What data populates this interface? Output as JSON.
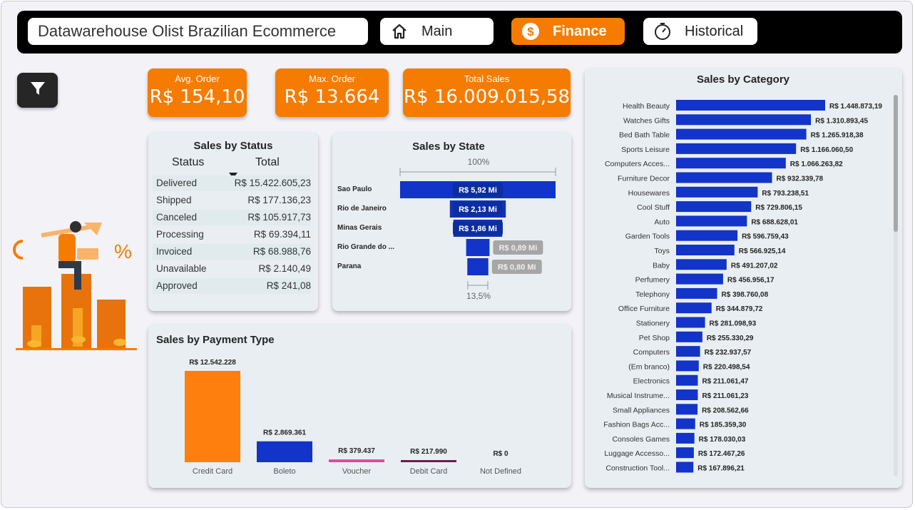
{
  "header": {
    "title": "Datawarehouse Olist Brazilian Ecommerce",
    "nav": [
      {
        "label": "Main",
        "icon": "home-icon",
        "active": false
      },
      {
        "label": "Finance",
        "icon": "dollar-icon",
        "active": true
      },
      {
        "label": "Historical",
        "icon": "stopwatch-icon",
        "active": false
      }
    ]
  },
  "filter_button": {
    "icon": "filter-icon"
  },
  "kpis": [
    {
      "label": "Avg. Order",
      "value": "R$ 154,10"
    },
    {
      "label": "Max. Order",
      "value": "R$ 13.664"
    },
    {
      "label": "Total Sales",
      "value": "R$ 16.009.015,58"
    }
  ],
  "colors": {
    "accent": "#f57c00",
    "topbar": "#000000",
    "bar_blue": "#1234c8",
    "bar_dark": "#0d2ea0",
    "card_bg": "#e9eef2",
    "grey_label": "#a6a6a6"
  },
  "status_table": {
    "title": "Sales by Status",
    "headers": [
      "Status",
      "Total"
    ],
    "rows": [
      {
        "status": "Delivered",
        "total": "R$ 15.422.605,23"
      },
      {
        "status": "Shipped",
        "total": "R$ 177.136,23"
      },
      {
        "status": "Canceled",
        "total": "R$ 105.917,73"
      },
      {
        "status": "Processing",
        "total": "R$ 69.394,11"
      },
      {
        "status": "Invoiced",
        "total": "R$ 68.988,76"
      },
      {
        "status": "Unavailable",
        "total": "R$ 2.140,49"
      },
      {
        "status": "Approved",
        "total": "R$ 241,08"
      }
    ]
  },
  "chart_data": [
    {
      "type": "bar",
      "subtype": "funnel",
      "title": "Sales by State",
      "top_label": "100%",
      "bottom_label": "13,5%",
      "categories": [
        "Sao Paulo",
        "Rio de Janeiro",
        "Minas Gerais",
        "Rio Grande do ...",
        "Parana"
      ],
      "values": [
        5.92,
        2.13,
        1.86,
        0.89,
        0.8
      ],
      "value_labels": [
        "R$ 5,92 Mi",
        "R$ 2,13 Mi",
        "R$ 1,86 Mi",
        "R$ 0,89 Mi",
        "R$ 0,80 Mi"
      ],
      "unit": "Mi"
    },
    {
      "type": "bar",
      "title": "Sales by Payment Type",
      "categories": [
        "Credit Card",
        "Boleto",
        "Voucher",
        "Debit Card",
        "Not Defined"
      ],
      "values": [
        12542228,
        2869361,
        379437,
        217990,
        0
      ],
      "value_labels": [
        "R$ 12.542.228",
        "R$ 2.869.361",
        "R$ 379.437",
        "R$ 217.990",
        "R$ 0"
      ],
      "colors": [
        "#ff7f0e",
        "#1234c8",
        "#e6459b",
        "#6b1f4a",
        "#888888"
      ]
    },
    {
      "type": "bar",
      "orientation": "horizontal",
      "title": "Sales by Category",
      "categories": [
        "Health Beauty",
        "Watches Gifts",
        "Bed Bath Table",
        "Sports Leisure",
        "Computers Acces...",
        "Furniture Decor",
        "Housewares",
        "Cool Stuff",
        "Auto",
        "Garden Tools",
        "Toys",
        "Baby",
        "Perfumery",
        "Telephony",
        "Office Furniture",
        "Stationery",
        "Pet Shop",
        "Computers",
        "(Em branco)",
        "Electronics",
        "Musical Instrume...",
        "Small Appliances",
        "Fashion Bags Acc...",
        "Consoles Games",
        "Luggage Accesso...",
        "Construction Tool..."
      ],
      "values": [
        1448873.19,
        1310893.45,
        1265918.38,
        1166060.5,
        1066263.82,
        932339.78,
        793238.51,
        729806.15,
        688628.01,
        596759.43,
        566925.14,
        491207.02,
        456956.17,
        398760.08,
        344879.72,
        281098.93,
        255330.29,
        232937.57,
        220498.54,
        211061.47,
        211061.23,
        208562.66,
        185359.3,
        178030.03,
        172467.26,
        167896.21
      ],
      "value_labels": [
        "R$ 1.448.873,19",
        "R$ 1.310.893,45",
        "R$ 1.265.918,38",
        "R$ 1.166.060,50",
        "R$ 1.066.263,82",
        "R$ 932.339,78",
        "R$ 793.238,51",
        "R$ 729.806,15",
        "R$ 688.628,01",
        "R$ 596.759,43",
        "R$ 566.925,14",
        "R$ 491.207,02",
        "R$ 456.956,17",
        "R$ 398.760,08",
        "R$ 344.879,72",
        "R$ 281.098,93",
        "R$ 255.330,29",
        "R$ 232.937,57",
        "R$ 220.498,54",
        "R$ 211.061,47",
        "R$ 211.061,23",
        "R$ 208.562,66",
        "R$ 185.359,30",
        "R$ 178.030,03",
        "R$ 172.467,26",
        "R$ 167.896,21"
      ],
      "color": "#1234c8"
    }
  ]
}
